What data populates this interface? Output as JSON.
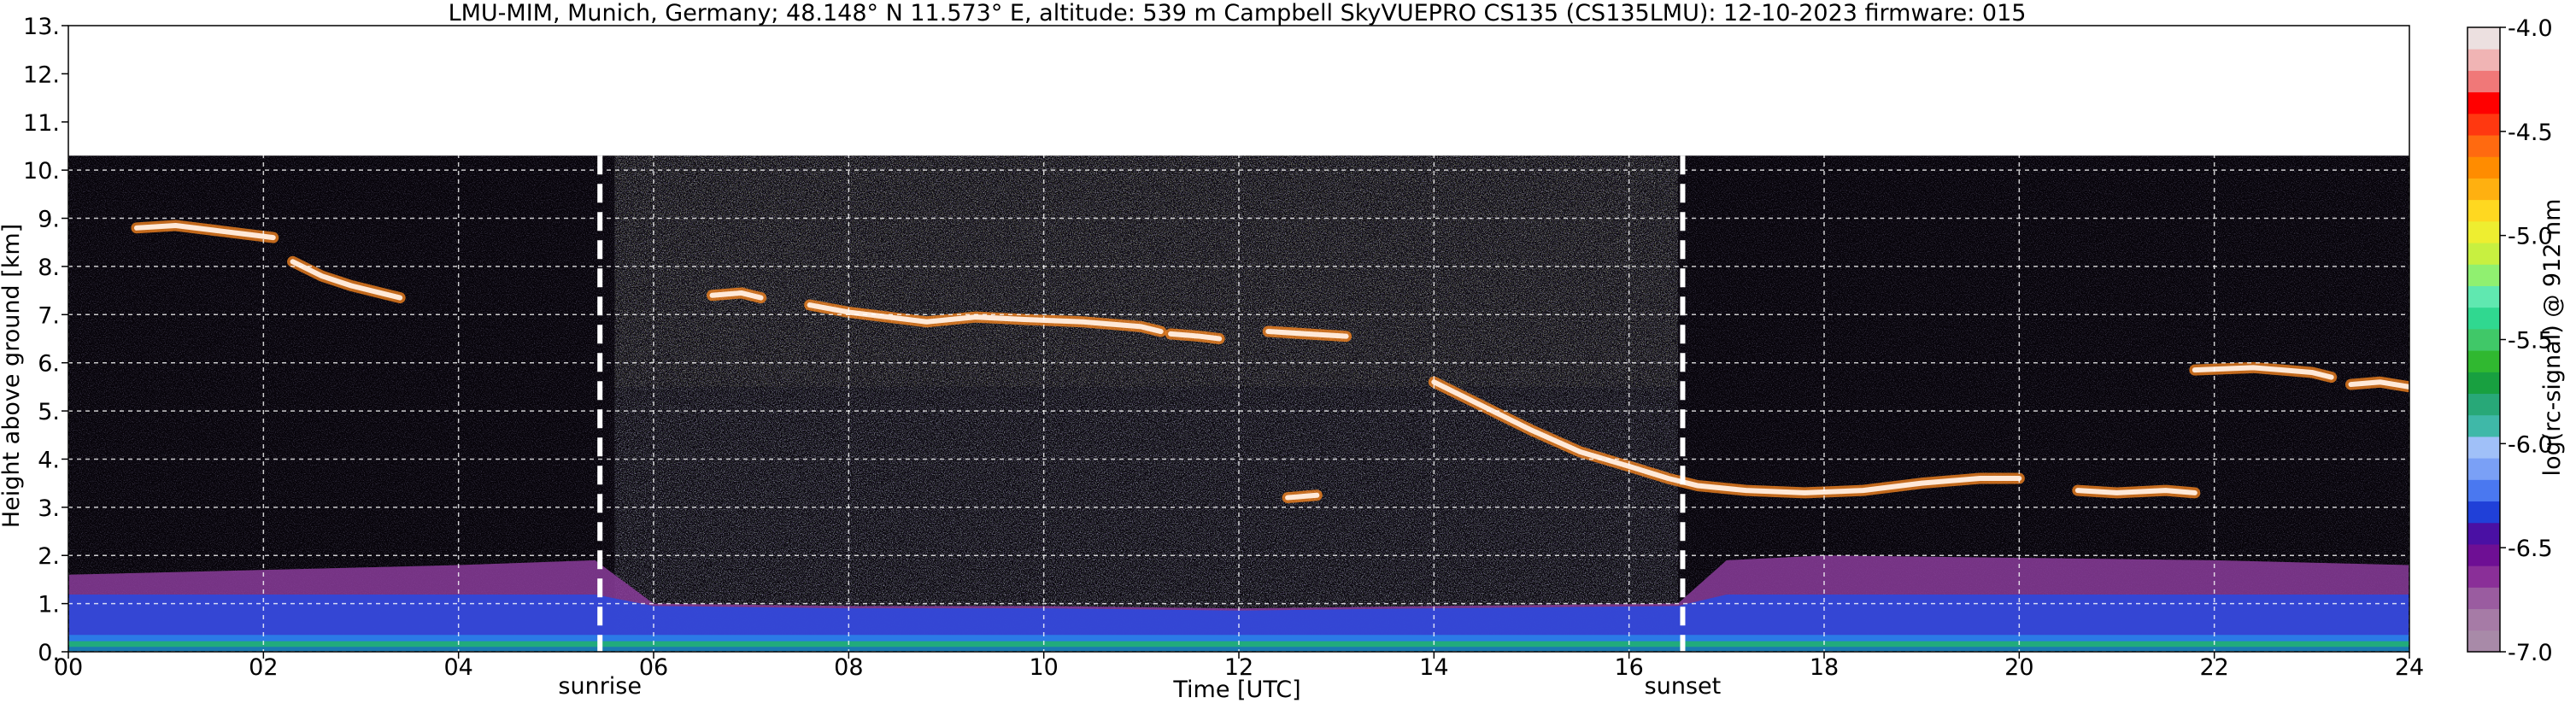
{
  "chart_data": {
    "type": "heatmap",
    "title": "LMU-MIM, Munich, Germany; 48.148° N 11.573° E, altitude: 539 m    Campbell SkyVUEPRO CS135 (CS135LMU): 12-10-2023    firmware: 015",
    "xlabel": "Time [UTC]",
    "ylabel": "Height above ground [km]",
    "xlim": [
      0,
      24
    ],
    "ylim": [
      0,
      13
    ],
    "x_ticks": [
      0,
      2,
      4,
      6,
      8,
      10,
      12,
      14,
      16,
      18,
      20,
      22,
      24
    ],
    "x_tick_labels": [
      "00",
      "02",
      "04",
      "06",
      "08",
      "10",
      "12",
      "14",
      "16",
      "18",
      "20",
      "22",
      "24"
    ],
    "y_ticks": [
      0,
      1,
      2,
      3,
      4,
      5,
      6,
      7,
      8,
      9,
      10,
      11,
      12,
      13
    ],
    "y_tick_labels": [
      "0.",
      "1.",
      "2.",
      "3.",
      "4.",
      "5.",
      "6.",
      "7.",
      "8.",
      "9.",
      "10.",
      "11.",
      "12.",
      "13."
    ],
    "grid": true,
    "data_top_km": 10.3,
    "events": [
      {
        "label": "sunrise",
        "time": 5.45
      },
      {
        "label": "sunset",
        "time": 16.55
      }
    ],
    "colorbar": {
      "label": "log(rc-signal) @ 912 nm",
      "range": [
        -7.0,
        -4.0
      ],
      "ticks": [
        -4.0,
        -4.5,
        -5.0,
        -5.5,
        -6.0,
        -6.5,
        -7.0
      ],
      "tick_labels": [
        "-4.0",
        "-4.5",
        "-5.0",
        "-5.5",
        "-6.0",
        "-6.5",
        "-7.0"
      ],
      "colors": [
        "#a88aa8",
        "#a67ba6",
        "#9a5ca0",
        "#8a2f98",
        "#6e0f94",
        "#4a10a4",
        "#2040d8",
        "#4a78f0",
        "#7aa0f6",
        "#a0c0f8",
        "#3fb8a8",
        "#28a878",
        "#18a040",
        "#30b830",
        "#40c868",
        "#30d890",
        "#60e8b0",
        "#90f070",
        "#c8f040",
        "#eeee30",
        "#ffd820",
        "#ffb010",
        "#ff8c00",
        "#ff6a10",
        "#ff3810",
        "#ff0000",
        "#f07878",
        "#f0b4b4",
        "#ece0e0"
      ]
    },
    "cloud_layers": [
      {
        "t": [
          0.7,
          1.1,
          1.5,
          1.9,
          2.1
        ],
        "h": [
          8.8,
          8.85,
          8.75,
          8.65,
          8.6
        ]
      },
      {
        "t": [
          2.3,
          2.6,
          2.9,
          3.2,
          3.4
        ],
        "h": [
          8.1,
          7.8,
          7.6,
          7.45,
          7.35
        ]
      },
      {
        "t": [
          6.6,
          6.9,
          7.1
        ],
        "h": [
          7.4,
          7.45,
          7.35
        ]
      },
      {
        "t": [
          7.6,
          8.0,
          8.4,
          8.8,
          9.3,
          9.8,
          10.4,
          11.0,
          11.2
        ],
        "h": [
          7.2,
          7.05,
          6.95,
          6.85,
          6.95,
          6.9,
          6.85,
          6.75,
          6.65
        ]
      },
      {
        "t": [
          11.3,
          11.6,
          11.8
        ],
        "h": [
          6.6,
          6.55,
          6.5
        ]
      },
      {
        "t": [
          12.3,
          12.7,
          13.1
        ],
        "h": [
          6.65,
          6.6,
          6.55
        ]
      },
      {
        "t": [
          14.0,
          14.5,
          15.0,
          15.5,
          16.0,
          16.4,
          16.7,
          17.2,
          17.8,
          18.4,
          19.0,
          19.6,
          20.0
        ],
        "h": [
          5.6,
          5.1,
          4.6,
          4.15,
          3.85,
          3.6,
          3.45,
          3.35,
          3.3,
          3.35,
          3.5,
          3.6,
          3.6
        ]
      },
      {
        "t": [
          20.6,
          21.0,
          21.5,
          21.8
        ],
        "h": [
          3.35,
          3.3,
          3.35,
          3.3
        ]
      },
      {
        "t": [
          21.8,
          22.4,
          23.0,
          23.2
        ],
        "h": [
          5.85,
          5.9,
          5.8,
          5.7
        ]
      },
      {
        "t": [
          23.4,
          23.7,
          24.0
        ],
        "h": [
          5.55,
          5.6,
          5.5
        ]
      },
      {
        "t": [
          12.5,
          12.8
        ],
        "h": [
          3.2,
          3.25
        ]
      }
    ],
    "aerosol_layer": {
      "t": [
        0,
        2,
        4,
        5.4,
        6,
        8,
        10,
        12,
        14,
        16.5,
        17,
        18,
        20,
        22,
        24
      ],
      "top_km": [
        1.6,
        1.7,
        1.8,
        1.9,
        1.0,
        0.95,
        0.95,
        0.9,
        0.95,
        1.0,
        1.9,
        2.0,
        1.95,
        1.9,
        1.8
      ]
    }
  }
}
